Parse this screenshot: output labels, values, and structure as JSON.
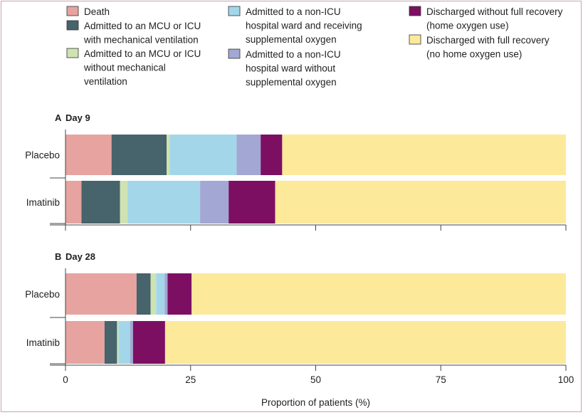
{
  "legend": [
    {
      "key": "death",
      "lines": [
        "Death"
      ],
      "color": "#e6a3a0"
    },
    {
      "key": "mcu_vent",
      "lines": [
        "Admitted to an MCU or ICU",
        "with mechanical ventilation"
      ],
      "color": "#47636b"
    },
    {
      "key": "mcu_novent",
      "lines": [
        "Admitted to an MCU or ICU",
        "without mechanical",
        "ventilation"
      ],
      "color": "#cfe3b2"
    },
    {
      "key": "ward_o2",
      "lines": [
        "Admitted to a non-ICU",
        "hospital ward and receiving",
        "supplemental oxygen"
      ],
      "color": "#a3d6e8"
    },
    {
      "key": "ward_noo2",
      "lines": [
        "Admitted to a non-ICU",
        "hospital ward without",
        "supplemental oxygen"
      ],
      "color": "#a2a8d3"
    },
    {
      "key": "disc_partial",
      "lines": [
        "Discharged without full recovery",
        "(home oxygen use)"
      ],
      "color": "#7d0f63"
    },
    {
      "key": "disc_full",
      "lines": [
        "Discharged with full recovery",
        "(no home oxygen use)"
      ],
      "color": "#fde99a"
    }
  ],
  "chart_data": {
    "type": "bar",
    "orientation": "horizontal-stacked",
    "xlabel": "Proportion of patients (%)",
    "xlim": [
      0,
      100
    ],
    "xticks": [
      "0",
      "25",
      "50",
      "75",
      "100"
    ],
    "panels": [
      {
        "letter": "A",
        "title": "Day 9",
        "categories": [
          "Placebo",
          "Imatinib"
        ],
        "series": [
          {
            "key": "death",
            "values": [
              9.2,
              3.2
            ]
          },
          {
            "key": "mcu_vent",
            "values": [
              11.0,
              7.7
            ]
          },
          {
            "key": "mcu_novent",
            "values": [
              0.6,
              1.5
            ]
          },
          {
            "key": "ward_o2",
            "values": [
              13.4,
              14.5
            ]
          },
          {
            "key": "ward_noo2",
            "values": [
              4.8,
              5.7
            ]
          },
          {
            "key": "disc_partial",
            "values": [
              4.3,
              9.3
            ]
          },
          {
            "key": "disc_full",
            "values": [
              56.7,
              58.1
            ]
          }
        ]
      },
      {
        "letter": "B",
        "title": "Day 28",
        "categories": [
          "Placebo",
          "Imatinib"
        ],
        "series": [
          {
            "key": "death",
            "values": [
              14.2,
              7.8
            ]
          },
          {
            "key": "mcu_vent",
            "values": [
              2.8,
              2.5
            ]
          },
          {
            "key": "mcu_novent",
            "values": [
              1.1,
              0.3
            ]
          },
          {
            "key": "ward_o2",
            "values": [
              1.7,
              2.3
            ]
          },
          {
            "key": "ward_noo2",
            "values": [
              0.6,
              0.6
            ]
          },
          {
            "key": "disc_partial",
            "values": [
              4.8,
              6.4
            ]
          },
          {
            "key": "disc_full",
            "values": [
              74.8,
              80.1
            ]
          }
        ]
      }
    ]
  }
}
